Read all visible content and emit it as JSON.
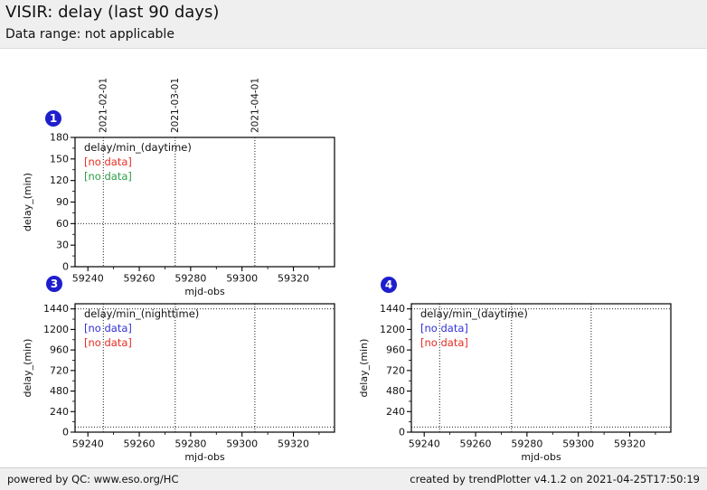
{
  "header": {
    "title": "VISIR: delay (last 90 days)",
    "subtitle": "Data range: not applicable"
  },
  "footer": {
    "left": "powered by QC: www.eso.org/HC",
    "right": "created by trendPlotter v4.1.2 on 2021-04-25T17:50:19"
  },
  "colors": {
    "badge": "#1e1ecd",
    "red": "#e62e23",
    "green": "#2d9e46",
    "blue": "#3232d7",
    "frame": "#000000",
    "header_bg": "#efefef"
  },
  "chart_data": [
    {
      "slot": 1,
      "badge": "1",
      "type": "scatter",
      "series_title": "delay/min_(daytime)",
      "legend": [
        {
          "label": "[no data]",
          "color_key": "red"
        },
        {
          "label": "[no data]",
          "color_key": "green"
        }
      ],
      "xlabel": "mjd-obs",
      "ylabel": "delay_(min)",
      "xlim": [
        59235,
        59336
      ],
      "ylim": [
        0,
        180
      ],
      "xticks": [
        59240,
        59260,
        59280,
        59300,
        59320
      ],
      "yticks": [
        0,
        30,
        60,
        90,
        120,
        150,
        180
      ],
      "x_minor_step": 10,
      "y_minor_step": 15,
      "threshold_lines_y": [
        60
      ],
      "date_gridlines": [
        {
          "mjd": 59246,
          "label": "2021-02-01"
        },
        {
          "mjd": 59274,
          "label": "2021-03-01"
        },
        {
          "mjd": 59305,
          "label": "2021-04-01"
        }
      ],
      "show_date_labels": true,
      "grid": "date gridlines dotted, threshold lines dotted",
      "points": []
    },
    {
      "slot": 3,
      "badge": "3",
      "type": "scatter",
      "series_title": "delay/min_(nighttime)",
      "legend": [
        {
          "label": "[no data]",
          "color_key": "blue"
        },
        {
          "label": "[no data]",
          "color_key": "red"
        }
      ],
      "xlabel": "mjd-obs",
      "ylabel": "delay_(min)",
      "xlim": [
        59235,
        59336
      ],
      "ylim": [
        0,
        1500
      ],
      "xticks": [
        59240,
        59260,
        59280,
        59300,
        59320
      ],
      "yticks": [
        0,
        240,
        480,
        720,
        960,
        1200,
        1440
      ],
      "x_minor_step": 10,
      "y_minor_step": 120,
      "threshold_lines_y": [
        60,
        1440
      ],
      "date_gridlines": [
        {
          "mjd": 59246,
          "label": "2021-02-01"
        },
        {
          "mjd": 59274,
          "label": "2021-03-01"
        },
        {
          "mjd": 59305,
          "label": "2021-04-01"
        }
      ],
      "show_date_labels": false,
      "grid": "date gridlines dotted, threshold lines dotted",
      "points": []
    },
    {
      "slot": 4,
      "badge": "4",
      "type": "scatter",
      "series_title": "delay/min_(daytime)",
      "legend": [
        {
          "label": "[no data]",
          "color_key": "blue"
        },
        {
          "label": "[no data]",
          "color_key": "red"
        }
      ],
      "xlabel": "mjd-obs",
      "ylabel": "delay_(min)",
      "xlim": [
        59235,
        59336
      ],
      "ylim": [
        0,
        1500
      ],
      "xticks": [
        59240,
        59260,
        59280,
        59300,
        59320
      ],
      "yticks": [
        0,
        240,
        480,
        720,
        960,
        1200,
        1440
      ],
      "x_minor_step": 10,
      "y_minor_step": 120,
      "threshold_lines_y": [
        60,
        1440
      ],
      "date_gridlines": [
        {
          "mjd": 59246,
          "label": "2021-02-01"
        },
        {
          "mjd": 59274,
          "label": "2021-03-01"
        },
        {
          "mjd": 59305,
          "label": "2021-04-01"
        }
      ],
      "show_date_labels": false,
      "grid": "date gridlines dotted, threshold lines dotted",
      "points": []
    }
  ]
}
